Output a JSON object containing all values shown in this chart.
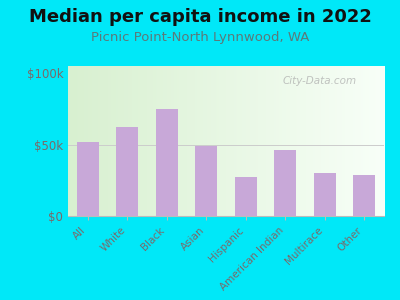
{
  "title": "Median per capita income in 2022",
  "subtitle": "Picnic Point-North Lynnwood, WA",
  "categories": [
    "All",
    "White",
    "Black",
    "Asian",
    "Hispanic",
    "American Indian",
    "Multirace",
    "Other"
  ],
  "values": [
    52000,
    62000,
    75000,
    49000,
    27000,
    46000,
    30000,
    29000
  ],
  "bar_color": "#c8a8d8",
  "background_outer": "#00e8f8",
  "title_color": "#111111",
  "subtitle_color": "#5a7a7a",
  "tick_color": "#7a6a6a",
  "ylabel_ticks": [
    "$0",
    "$50k",
    "$100k"
  ],
  "yticks": [
    0,
    50000,
    100000
  ],
  "ylim": [
    0,
    105000
  ],
  "watermark": "City-Data.com",
  "title_fontsize": 13,
  "subtitle_fontsize": 9.5
}
